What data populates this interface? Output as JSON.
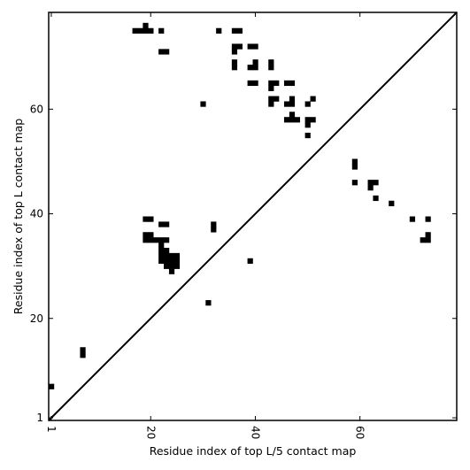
{
  "chart_data": {
    "type": "heatmap",
    "title": "",
    "xlabel": "Residue index of top L/5 contact map",
    "ylabel": "Residue index of top L contact map",
    "xlim": [
      0.5,
      78.5
    ],
    "ylim": [
      0.5,
      78.5
    ],
    "xticks": [
      1,
      20,
      40,
      60
    ],
    "yticks": [
      1,
      20,
      40,
      60
    ],
    "x_tick_rotation": -90,
    "diagonal": true,
    "grid": false,
    "cell_color": "#000000",
    "background_color": "#ffffff",
    "upper_contacts": [
      [
        17,
        75
      ],
      [
        18,
        75
      ],
      [
        19,
        75
      ],
      [
        19,
        76
      ],
      [
        20,
        75
      ],
      [
        22,
        75
      ],
      [
        33,
        75
      ],
      [
        36,
        75
      ],
      [
        37,
        75
      ],
      [
        22,
        71
      ],
      [
        23,
        71
      ],
      [
        36,
        71
      ],
      [
        36,
        72
      ],
      [
        37,
        72
      ],
      [
        39,
        72
      ],
      [
        40,
        72
      ],
      [
        36,
        68
      ],
      [
        36,
        69
      ],
      [
        39,
        68
      ],
      [
        40,
        68
      ],
      [
        40,
        69
      ],
      [
        43,
        68
      ],
      [
        43,
        69
      ],
      [
        39,
        65
      ],
      [
        40,
        65
      ],
      [
        43,
        64
      ],
      [
        43,
        65
      ],
      [
        44,
        65
      ],
      [
        46,
        65
      ],
      [
        47,
        65
      ],
      [
        43,
        61
      ],
      [
        43,
        62
      ],
      [
        44,
        62
      ],
      [
        46,
        61
      ],
      [
        47,
        61
      ],
      [
        47,
        62
      ],
      [
        30,
        61
      ],
      [
        50,
        61
      ],
      [
        51,
        62
      ],
      [
        46,
        58
      ],
      [
        47,
        58
      ],
      [
        47,
        59
      ],
      [
        48,
        58
      ],
      [
        50,
        57
      ],
      [
        50,
        58
      ],
      [
        51,
        58
      ],
      [
        50,
        55
      ],
      [
        59,
        49
      ],
      [
        59,
        50
      ],
      [
        59,
        46
      ],
      [
        62,
        45
      ],
      [
        62,
        46
      ],
      [
        63,
        46
      ],
      [
        63,
        43
      ],
      [
        66,
        42
      ],
      [
        70,
        39
      ],
      [
        73,
        39
      ],
      [
        72,
        35
      ],
      [
        73,
        35
      ],
      [
        73,
        36
      ]
    ],
    "lower_contacts": [
      [
        1,
        7
      ],
      [
        7,
        13
      ],
      [
        7,
        14
      ],
      [
        31,
        23
      ],
      [
        39,
        31
      ],
      [
        32,
        37
      ],
      [
        32,
        38
      ],
      [
        19,
        39
      ],
      [
        20,
        39
      ],
      [
        22,
        38
      ],
      [
        23,
        38
      ],
      [
        19,
        35
      ],
      [
        19,
        36
      ],
      [
        20,
        35
      ],
      [
        20,
        36
      ],
      [
        21,
        35
      ],
      [
        22,
        35
      ],
      [
        22,
        34
      ],
      [
        23,
        35
      ],
      [
        22,
        33
      ],
      [
        23,
        33
      ],
      [
        22,
        32
      ],
      [
        23,
        32
      ],
      [
        24,
        32
      ],
      [
        25,
        32
      ],
      [
        22,
        31
      ],
      [
        23,
        31
      ],
      [
        24,
        31
      ],
      [
        25,
        31
      ],
      [
        23,
        30
      ],
      [
        24,
        30
      ],
      [
        25,
        30
      ],
      [
        24,
        29
      ]
    ]
  }
}
